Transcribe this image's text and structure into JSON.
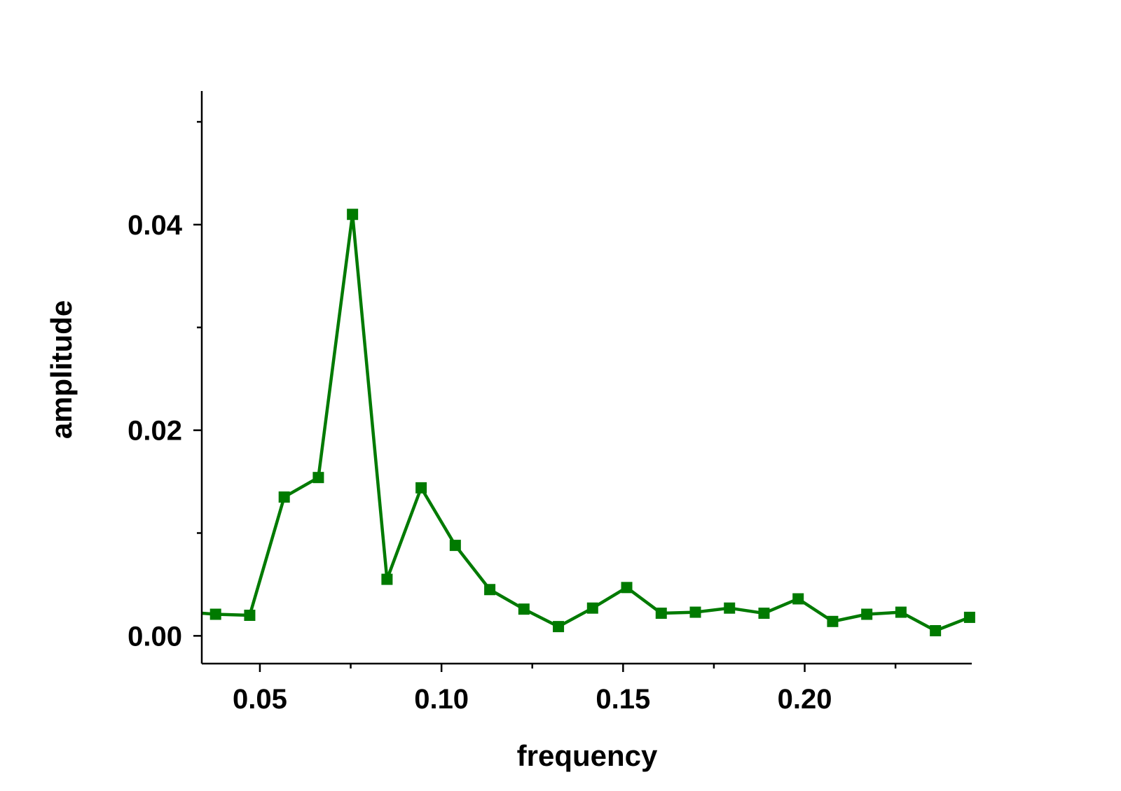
{
  "chart_data": {
    "type": "line",
    "title": "",
    "xlabel": "frequency",
    "ylabel": "amplitude",
    "xlim": [
      0.034,
      0.246
    ],
    "ylim": [
      -0.0027,
      0.053
    ],
    "x_ticks": [
      {
        "value": 0.05,
        "label": "0.05"
      },
      {
        "value": 0.1,
        "label": "0.10"
      },
      {
        "value": 0.15,
        "label": "0.15"
      },
      {
        "value": 0.2,
        "label": "0.20"
      }
    ],
    "x_minor_ticks": [
      0.075,
      0.125,
      0.175,
      0.225
    ],
    "y_ticks": [
      {
        "value": 0.0,
        "label": "0.00"
      },
      {
        "value": 0.02,
        "label": "0.02"
      },
      {
        "value": 0.04,
        "label": "0.04"
      }
    ],
    "y_minor_ticks": [
      0.01,
      0.03,
      0.05
    ],
    "grid": false,
    "color": "#007a00",
    "series": [
      {
        "x": [
          0.0378,
          0.0472,
          0.0567,
          0.0661,
          0.0755,
          0.085,
          0.0944,
          0.1038,
          0.1133,
          0.1227,
          0.1322,
          0.1416,
          0.151,
          0.1605,
          0.1699,
          0.1793,
          0.1888,
          0.1982,
          0.2077,
          0.2171,
          0.2265,
          0.236,
          0.2454
        ],
        "values": [
          0.0021,
          0.002,
          0.0135,
          0.0154,
          0.041,
          0.0055,
          0.0144,
          0.0088,
          0.0045,
          0.0026,
          0.0009,
          0.0027,
          0.0047,
          0.0022,
          0.0023,
          0.0027,
          0.0022,
          0.0036,
          0.0014,
          0.0021,
          0.0023,
          0.0005,
          0.0018
        ]
      }
    ]
  }
}
